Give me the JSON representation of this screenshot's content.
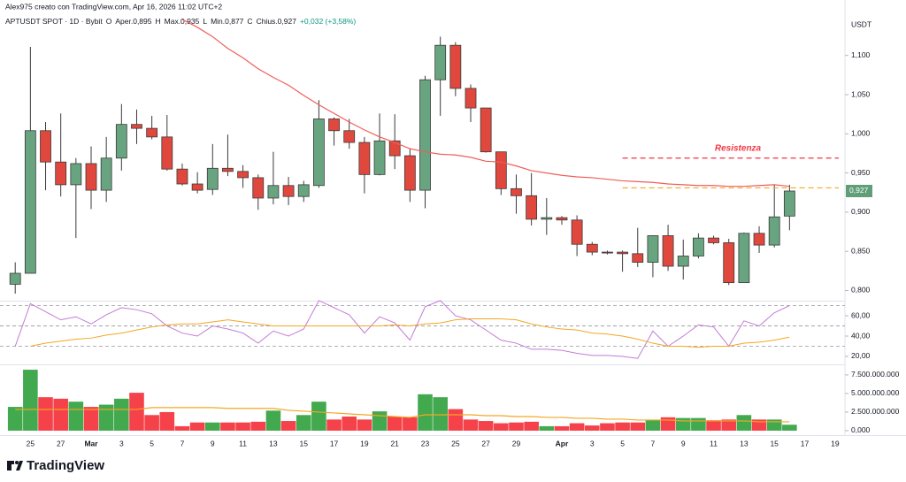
{
  "header": {
    "credit": "Alex975 creato con TradingView.com, Apr 16, 2026 11:02 UTC+2",
    "legend": [
      "APTUSDT SPOT · 1D · Bybit",
      "O",
      "Aper.0,895",
      "H",
      "Max.0,935",
      "L",
      "Min.0,877",
      "C",
      "Chius.0,927",
      "+0,032 (+3,58%)"
    ],
    "currency": "USDT"
  },
  "footer": {
    "logo": "TradingView"
  },
  "chart_data": [
    {
      "type": "candlestick",
      "categories": [
        null,
        "25",
        null,
        "27",
        null,
        "Mar",
        null,
        "3",
        null,
        "5",
        null,
        "7",
        null,
        "9",
        null,
        "11",
        null,
        "13",
        null,
        "15",
        null,
        "17",
        null,
        "19",
        null,
        "21",
        null,
        "23",
        null,
        "25",
        null,
        "27",
        null,
        "29",
        null,
        null,
        "Apr",
        null,
        "3",
        null,
        "5",
        null,
        "7",
        null,
        "9",
        null,
        "11",
        null,
        "13",
        null,
        "15",
        null,
        "17",
        null,
        "19"
      ],
      "open": [
        0.808,
        0.822,
        1.004,
        0.964,
        0.935,
        0.962,
        0.928,
        0.969,
        1.012,
        1.007,
        0.996,
        0.955,
        0.936,
        0.929,
        0.956,
        0.952,
        0.944,
        0.918,
        0.934,
        0.92,
        0.934,
        1.019,
        1.004,
        0.989,
        0.948,
        0.991,
        0.972,
        0.928,
        1.069,
        1.113,
        1.058,
        1.033,
        0.977,
        0.93,
        0.921,
        0.891,
        0.893,
        0.89,
        0.859,
        0.849,
        0.849,
        0.847,
        0.836,
        0.87,
        0.831,
        0.844,
        0.867,
        0.861,
        0.81,
        0.873,
        0.858,
        0.895,
        null,
        null,
        null
      ],
      "high": [
        0.836,
        1.111,
        1.015,
        1.026,
        0.969,
        0.984,
        0.996,
        1.038,
        1.031,
        1.023,
        1.024,
        0.962,
        0.951,
        0.987,
        0.999,
        0.96,
        0.948,
        0.977,
        0.945,
        0.94,
        1.043,
        1.021,
        1.019,
        0.996,
        1.026,
        1.025,
        0.981,
        1.074,
        1.124,
        1.117,
        1.063,
        1.033,
        0.977,
        0.948,
        0.95,
        0.918,
        0.895,
        0.896,
        0.862,
        0.851,
        0.851,
        0.88,
        0.87,
        0.884,
        0.865,
        0.873,
        0.87,
        0.866,
        0.874,
        0.882,
        0.935,
        0.935,
        null,
        null,
        null
      ],
      "low": [
        0.796,
        0.822,
        0.928,
        0.92,
        0.867,
        0.904,
        0.913,
        0.953,
        0.987,
        0.993,
        0.953,
        0.934,
        0.924,
        0.922,
        0.946,
        0.931,
        0.903,
        0.91,
        0.909,
        0.913,
        0.931,
        0.985,
        0.981,
        0.924,
        0.947,
        0.955,
        0.913,
        0.905,
        1.023,
        1.048,
        1.015,
        0.976,
        0.922,
        0.898,
        0.883,
        0.871,
        0.884,
        0.844,
        0.845,
        0.846,
        0.824,
        0.83,
        0.817,
        0.825,
        0.814,
        0.841,
        0.859,
        0.807,
        0.81,
        0.848,
        0.855,
        0.877,
        null,
        null,
        null
      ],
      "close": [
        0.822,
        1.004,
        0.964,
        0.935,
        0.962,
        0.928,
        0.969,
        1.012,
        1.007,
        0.996,
        0.955,
        0.936,
        0.928,
        0.956,
        0.952,
        0.944,
        0.918,
        0.934,
        0.92,
        0.935,
        1.019,
        1.004,
        0.989,
        0.948,
        0.991,
        0.972,
        0.928,
        1.069,
        1.113,
        1.058,
        1.033,
        0.977,
        0.93,
        0.921,
        0.891,
        0.893,
        0.89,
        0.859,
        0.849,
        0.848,
        0.847,
        0.836,
        0.87,
        0.831,
        0.844,
        0.867,
        0.861,
        0.81,
        0.873,
        0.858,
        0.894,
        0.927,
        null,
        null,
        null
      ],
      "up_color": "#68a47f",
      "down_color": "#e0483e",
      "moving_average": {
        "color": "#ef5e5a",
        "values": [
          null,
          null,
          null,
          null,
          null,
          null,
          null,
          null,
          null,
          null,
          null,
          1.146,
          1.136,
          1.124,
          1.109,
          1.097,
          1.083,
          1.072,
          1.062,
          1.049,
          1.037,
          1.026,
          1.015,
          1.005,
          0.996,
          0.989,
          0.981,
          0.977,
          0.974,
          0.973,
          0.97,
          0.965,
          0.964,
          0.959,
          0.953,
          0.95,
          0.947,
          0.945,
          0.944,
          0.942,
          0.94,
          0.939,
          0.938,
          0.936,
          0.935,
          0.934,
          0.934,
          0.933,
          0.933,
          0.934,
          0.935,
          0.933,
          null,
          null,
          null
        ]
      },
      "annotations": [
        {
          "text": "Resistenza",
          "value": 0.969,
          "color": "#f23645",
          "start": 40
        },
        {
          "value": 0.931,
          "color": "#f5a623",
          "start": 40
        }
      ],
      "price_tag": {
        "value": 0.927,
        "label": "0,927",
        "color": "#5f9e78"
      },
      "ylim": [
        0.787,
        1.155
      ],
      "yticks": [
        {
          "value": 0.8,
          "label": "0,800"
        },
        {
          "value": 0.85,
          "label": "0,850"
        },
        {
          "value": 0.9,
          "label": "0,900"
        },
        {
          "value": 0.95,
          "label": "0,950"
        },
        {
          "value": 1.0,
          "label": "1,000"
        },
        {
          "value": 1.05,
          "label": "1,050"
        },
        {
          "value": 1.1,
          "label": "1,100"
        }
      ]
    },
    {
      "type": "line",
      "series": [
        {
          "color": "#c27bd4",
          "values": [
            30,
            72,
            64,
            56,
            59,
            52,
            61,
            68,
            66,
            62,
            50,
            43,
            40,
            50,
            47,
            43,
            33,
            45,
            40,
            47,
            75,
            68,
            61,
            43,
            59,
            53,
            36,
            69,
            75,
            60,
            56,
            46,
            36,
            33,
            27,
            27,
            26,
            23,
            21,
            21,
            20,
            18,
            45,
            30,
            40,
            51,
            49,
            30,
            55,
            50,
            63,
            70,
            null,
            null,
            null
          ]
        },
        {
          "color": "#f5a623",
          "values": [
            null,
            30,
            33,
            35,
            37,
            38,
            41,
            43,
            46,
            49,
            51,
            52,
            52,
            54,
            56,
            54,
            52,
            50,
            50,
            50,
            50,
            50,
            50,
            50,
            50,
            51,
            50,
            52,
            53,
            56,
            57,
            57,
            57,
            56,
            52,
            49,
            47,
            46,
            43,
            42,
            40,
            37,
            33,
            30,
            30,
            29,
            30,
            30,
            33,
            34,
            36,
            39,
            null,
            null,
            null
          ]
        }
      ],
      "levels": [
        70,
        50,
        30
      ],
      "ylim": [
        13,
        74
      ],
      "yticks": [
        {
          "value": 20,
          "label": "20,00"
        },
        {
          "value": 40,
          "label": "40,00"
        },
        {
          "value": 60,
          "label": "60,00"
        }
      ]
    },
    {
      "type": "bar",
      "values": [
        3200000000,
        8200000000,
        4500000000,
        4300000000,
        3900000000,
        3200000000,
        3500000000,
        4300000000,
        5100000000,
        2100000000,
        2500000000,
        600000000,
        1100000000,
        1100000000,
        1100000000,
        1100000000,
        1200000000,
        2700000000,
        1300000000,
        2100000000,
        3900000000,
        1500000000,
        1900000000,
        1500000000,
        2600000000,
        1900000000,
        1800000000,
        4900000000,
        4500000000,
        2900000000,
        1500000000,
        1300000000,
        1000000000,
        1100000000,
        1200000000,
        600000000,
        600000000,
        1000000000,
        700000000,
        1000000000,
        1100000000,
        1100000000,
        1400000000,
        1800000000,
        1700000000,
        1700000000,
        1400000000,
        1500000000,
        2100000000,
        1500000000,
        1500000000,
        800000000,
        null,
        null,
        null
      ],
      "up_color": "#43a94f",
      "down_color": "#f5424a",
      "moving_average": {
        "color": "#f5a623",
        "values": [
          2860000000,
          2860000000,
          2860000000,
          2860000000,
          2860000000,
          2860000000,
          2860000000,
          2860000000,
          2860000000,
          3100000000,
          3100000000,
          3100000000,
          3100000000,
          3100000000,
          3000000000,
          3000000000,
          3000000000,
          3000000000,
          2740000000,
          2620000000,
          2500000000,
          2380000000,
          2260000000,
          2140000000,
          2020000000,
          1900000000,
          1790000000,
          2140000000,
          2140000000,
          2140000000,
          2140000000,
          2020000000,
          2020000000,
          1900000000,
          1900000000,
          1790000000,
          1790000000,
          1670000000,
          1670000000,
          1550000000,
          1550000000,
          1430000000,
          1430000000,
          1430000000,
          1310000000,
          1310000000,
          1310000000,
          1310000000,
          1310000000,
          1190000000,
          1190000000,
          1190000000,
          null,
          null,
          null
        ]
      },
      "ylim": [
        -600000000,
        8800000000
      ],
      "yticks": [
        {
          "value": 0,
          "label": "0,000"
        },
        {
          "value": 2500000000,
          "label": "2.500.000.000"
        },
        {
          "value": 5000000000,
          "label": "5.000.000.000"
        },
        {
          "value": 7500000000,
          "label": "7.500.000.000"
        }
      ]
    }
  ]
}
